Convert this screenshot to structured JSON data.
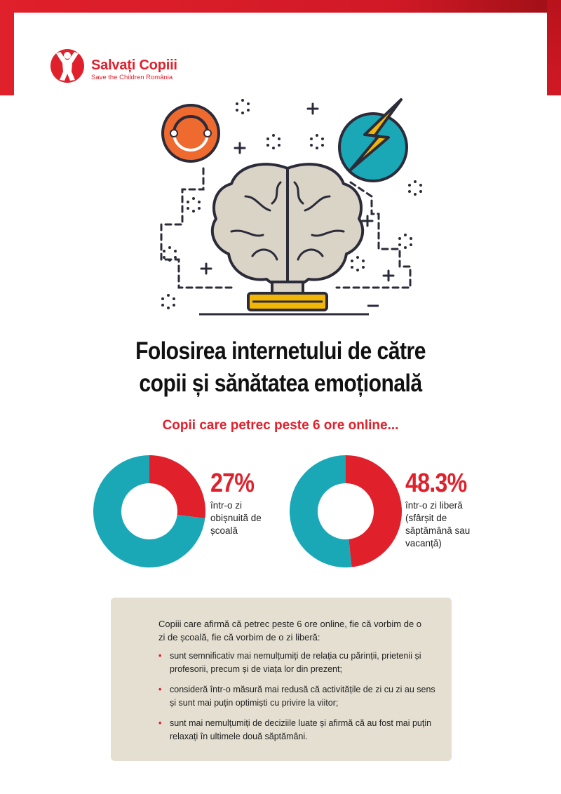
{
  "brand": {
    "name": "Salvați Copiii",
    "tagline": "Save the Children România",
    "color": "#e0202b"
  },
  "hero": {
    "icons": [
      "brain-icon",
      "lightning-icon",
      "cycle-icon",
      "plus-icon",
      "minus-icon"
    ]
  },
  "title": {
    "line1": "Folosirea internetului de către",
    "line2": "copii și sănătatea emoțională"
  },
  "subtitle": "Copii care petrec peste 6 ore online...",
  "colors": {
    "highlight": "#e0202b",
    "remainder": "#1aa8b7",
    "box": "#e4dfd1"
  },
  "chart_data": [
    {
      "type": "pie",
      "values": [
        27,
        73
      ],
      "label": "27%",
      "caption": "într-o zi obișnuită de școală"
    },
    {
      "type": "pie",
      "values": [
        48.3,
        51.7
      ],
      "label": "48.3%",
      "caption": "într-o zi liberă (sfârșit de săptămână sau vacanță)"
    }
  ],
  "info": {
    "intro": "Copiii care afirmă că petrec peste 6 ore online, fie că vorbim de o zi de școală, fie că vorbim de o zi liberă:",
    "bullets": [
      "sunt semnificativ mai nemulțumiți de relația cu părinții, prietenii și profesorii, precum și de viața lor din prezent;",
      "consideră într-o măsură mai redusă că activitățile de zi cu zi au sens și sunt mai puțin optimiști cu privire la viitor;",
      "sunt mai nemulțumiți de deciziile luate și afirmă că au fost mai puțin relaxați în ultimele două săptămâni."
    ],
    "bullet_symbol": "•"
  }
}
